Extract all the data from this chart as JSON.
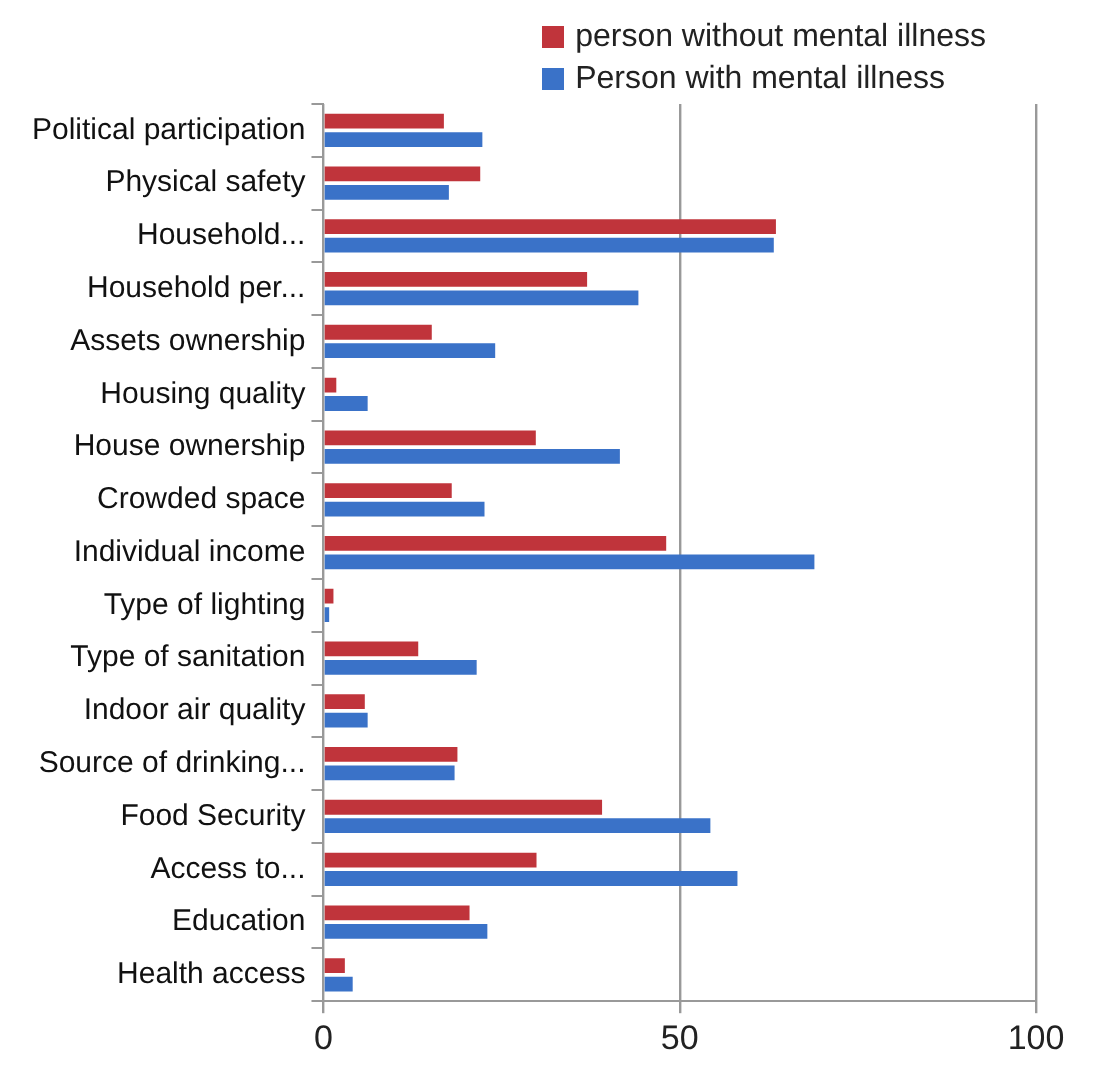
{
  "chart_data": {
    "type": "bar",
    "orientation": "horizontal",
    "categories": [
      "Political participation",
      "Physical safety",
      "Household...",
      "Household per...",
      "Assets ownership",
      "Housing quality",
      "House ownership",
      "Crowded space",
      "Individual income",
      "Type of lighting",
      "Type of sanitation",
      "Indoor air quality",
      "Source of drinking...",
      "Food Security",
      "Access to...",
      "Education",
      "Health access"
    ],
    "series": [
      {
        "name": "person without mental illness",
        "color": "#c0343b",
        "values": [
          16.9,
          22,
          63.5,
          37,
          15.2,
          1.8,
          29.8,
          18,
          48.1,
          1.4,
          13.3,
          5.8,
          18.8,
          39.1,
          29.9,
          20.5,
          3
        ]
      },
      {
        "name": "Person with mental illness",
        "color": "#3a72c8",
        "values": [
          22.3,
          17.6,
          63.2,
          44.2,
          24.1,
          6.2,
          41.6,
          22.6,
          68.9,
          0.8,
          21.5,
          6.2,
          18.4,
          54.3,
          58.1,
          23,
          4.1
        ]
      }
    ],
    "xlim": [
      0,
      100
    ],
    "xticks": [
      0,
      50,
      100
    ],
    "grid": "x",
    "legend": "top right"
  }
}
